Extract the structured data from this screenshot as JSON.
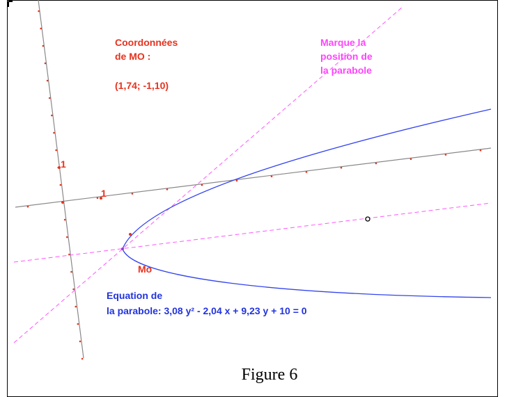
{
  "coords_label": [
    "Coordonnées",
    "de MO :"
  ],
  "coords_value": "(1,74; -1,10)",
  "marker_label": [
    "Marque la",
    "position de",
    "la parabole"
  ],
  "axis_unit_labels": [
    "1",
    "1"
  ],
  "point_label": "Mo",
  "equation": [
    "Equation de",
    "la parabole:  3,08 y² - 2,04 x + 9,23 y + 10 = 0"
  ],
  "caption": "Figure 6"
}
